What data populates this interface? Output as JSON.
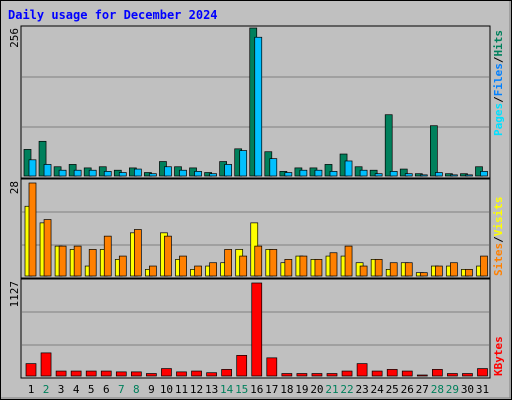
{
  "title": "Daily usage for December 2024",
  "colors": {
    "background": "#C0C0C0",
    "title": "#0000FF",
    "hits": "#00805C",
    "files": "#00C0FF",
    "pages": "#00E0FF",
    "sites": "#FF8000",
    "visits": "#FFFF00",
    "kbytes": "#FF0000",
    "weekend_label": "#00805C",
    "weekday_label": "#000000"
  },
  "legends": {
    "top": {
      "pages": "Pages",
      "files": "Files",
      "hits": "Hits",
      "sep": "/"
    },
    "middle": {
      "sites": "Sites",
      "visits": "Visits",
      "sep": "/"
    },
    "bottom": {
      "kbytes": "KBytes"
    }
  },
  "chart_data": [
    {
      "type": "bar",
      "panel": "hits-files-pages",
      "ymax_label": "256",
      "ylim": [
        0,
        256
      ],
      "categories": [
        "1",
        "2",
        "3",
        "4",
        "5",
        "6",
        "7",
        "8",
        "9",
        "10",
        "11",
        "12",
        "13",
        "14",
        "15",
        "16",
        "17",
        "18",
        "19",
        "20",
        "21",
        "22",
        "23",
        "24",
        "25",
        "26",
        "27",
        "28",
        "29",
        "30",
        "31"
      ],
      "weekend": [
        false,
        true,
        false,
        false,
        false,
        false,
        true,
        true,
        false,
        false,
        false,
        false,
        false,
        true,
        true,
        false,
        false,
        false,
        false,
        false,
        true,
        true,
        false,
        false,
        false,
        false,
        false,
        true,
        true,
        false,
        false
      ],
      "series": [
        {
          "name": "Hits",
          "values": [
            46,
            60,
            16,
            20,
            14,
            16,
            10,
            14,
            6,
            25,
            16,
            14,
            6,
            25,
            47,
            256,
            42,
            8,
            14,
            14,
            20,
            38,
            16,
            10,
            106,
            12,
            4,
            87,
            4,
            4,
            16
          ]
        },
        {
          "name": "Files",
          "values": [
            28,
            20,
            10,
            10,
            10,
            8,
            6,
            12,
            4,
            16,
            10,
            8,
            4,
            20,
            44,
            240,
            30,
            6,
            10,
            10,
            8,
            26,
            10,
            4,
            8,
            4,
            2,
            6,
            2,
            2,
            8
          ]
        },
        {
          "name": "Pages",
          "values": [
            28,
            20,
            10,
            10,
            10,
            8,
            6,
            12,
            4,
            16,
            10,
            8,
            4,
            20,
            44,
            240,
            30,
            6,
            10,
            10,
            8,
            26,
            10,
            4,
            8,
            4,
            2,
            6,
            2,
            2,
            8
          ]
        }
      ]
    },
    {
      "type": "bar",
      "panel": "visits-sites",
      "ymax_label": "28",
      "ylim": [
        0,
        28
      ],
      "categories": [
        "1",
        "2",
        "3",
        "4",
        "5",
        "6",
        "7",
        "8",
        "9",
        "10",
        "11",
        "12",
        "13",
        "14",
        "15",
        "16",
        "17",
        "18",
        "19",
        "20",
        "21",
        "22",
        "23",
        "24",
        "25",
        "26",
        "27",
        "28",
        "29",
        "30",
        "31"
      ],
      "series": [
        {
          "name": "Visits",
          "values": [
            21,
            16,
            9,
            8,
            3,
            8,
            5,
            13,
            2,
            13,
            5,
            2,
            3,
            4,
            8,
            16,
            8,
            4,
            6,
            5,
            6,
            6,
            4,
            5,
            2,
            4,
            1,
            3,
            3,
            2,
            3
          ]
        },
        {
          "name": "Sites",
          "values": [
            28,
            17,
            9,
            9,
            8,
            12,
            6,
            14,
            3,
            12,
            6,
            3,
            4,
            8,
            6,
            9,
            8,
            5,
            6,
            5,
            7,
            9,
            3,
            5,
            4,
            4,
            1,
            3,
            4,
            2,
            6
          ]
        }
      ]
    },
    {
      "type": "bar",
      "panel": "kbytes",
      "ymax_label": "1127",
      "ylim": [
        0,
        1127
      ],
      "categories": [
        "1",
        "2",
        "3",
        "4",
        "5",
        "6",
        "7",
        "8",
        "9",
        "10",
        "11",
        "12",
        "13",
        "14",
        "15",
        "16",
        "17",
        "18",
        "19",
        "20",
        "21",
        "22",
        "23",
        "24",
        "25",
        "26",
        "27",
        "28",
        "29",
        "30",
        "31"
      ],
      "series": [
        {
          "name": "KBytes",
          "values": [
            150,
            280,
            60,
            60,
            60,
            60,
            50,
            50,
            30,
            90,
            50,
            60,
            40,
            80,
            250,
            1127,
            220,
            30,
            30,
            30,
            30,
            60,
            150,
            60,
            80,
            60,
            10,
            80,
            30,
            30,
            90
          ]
        }
      ]
    }
  ]
}
